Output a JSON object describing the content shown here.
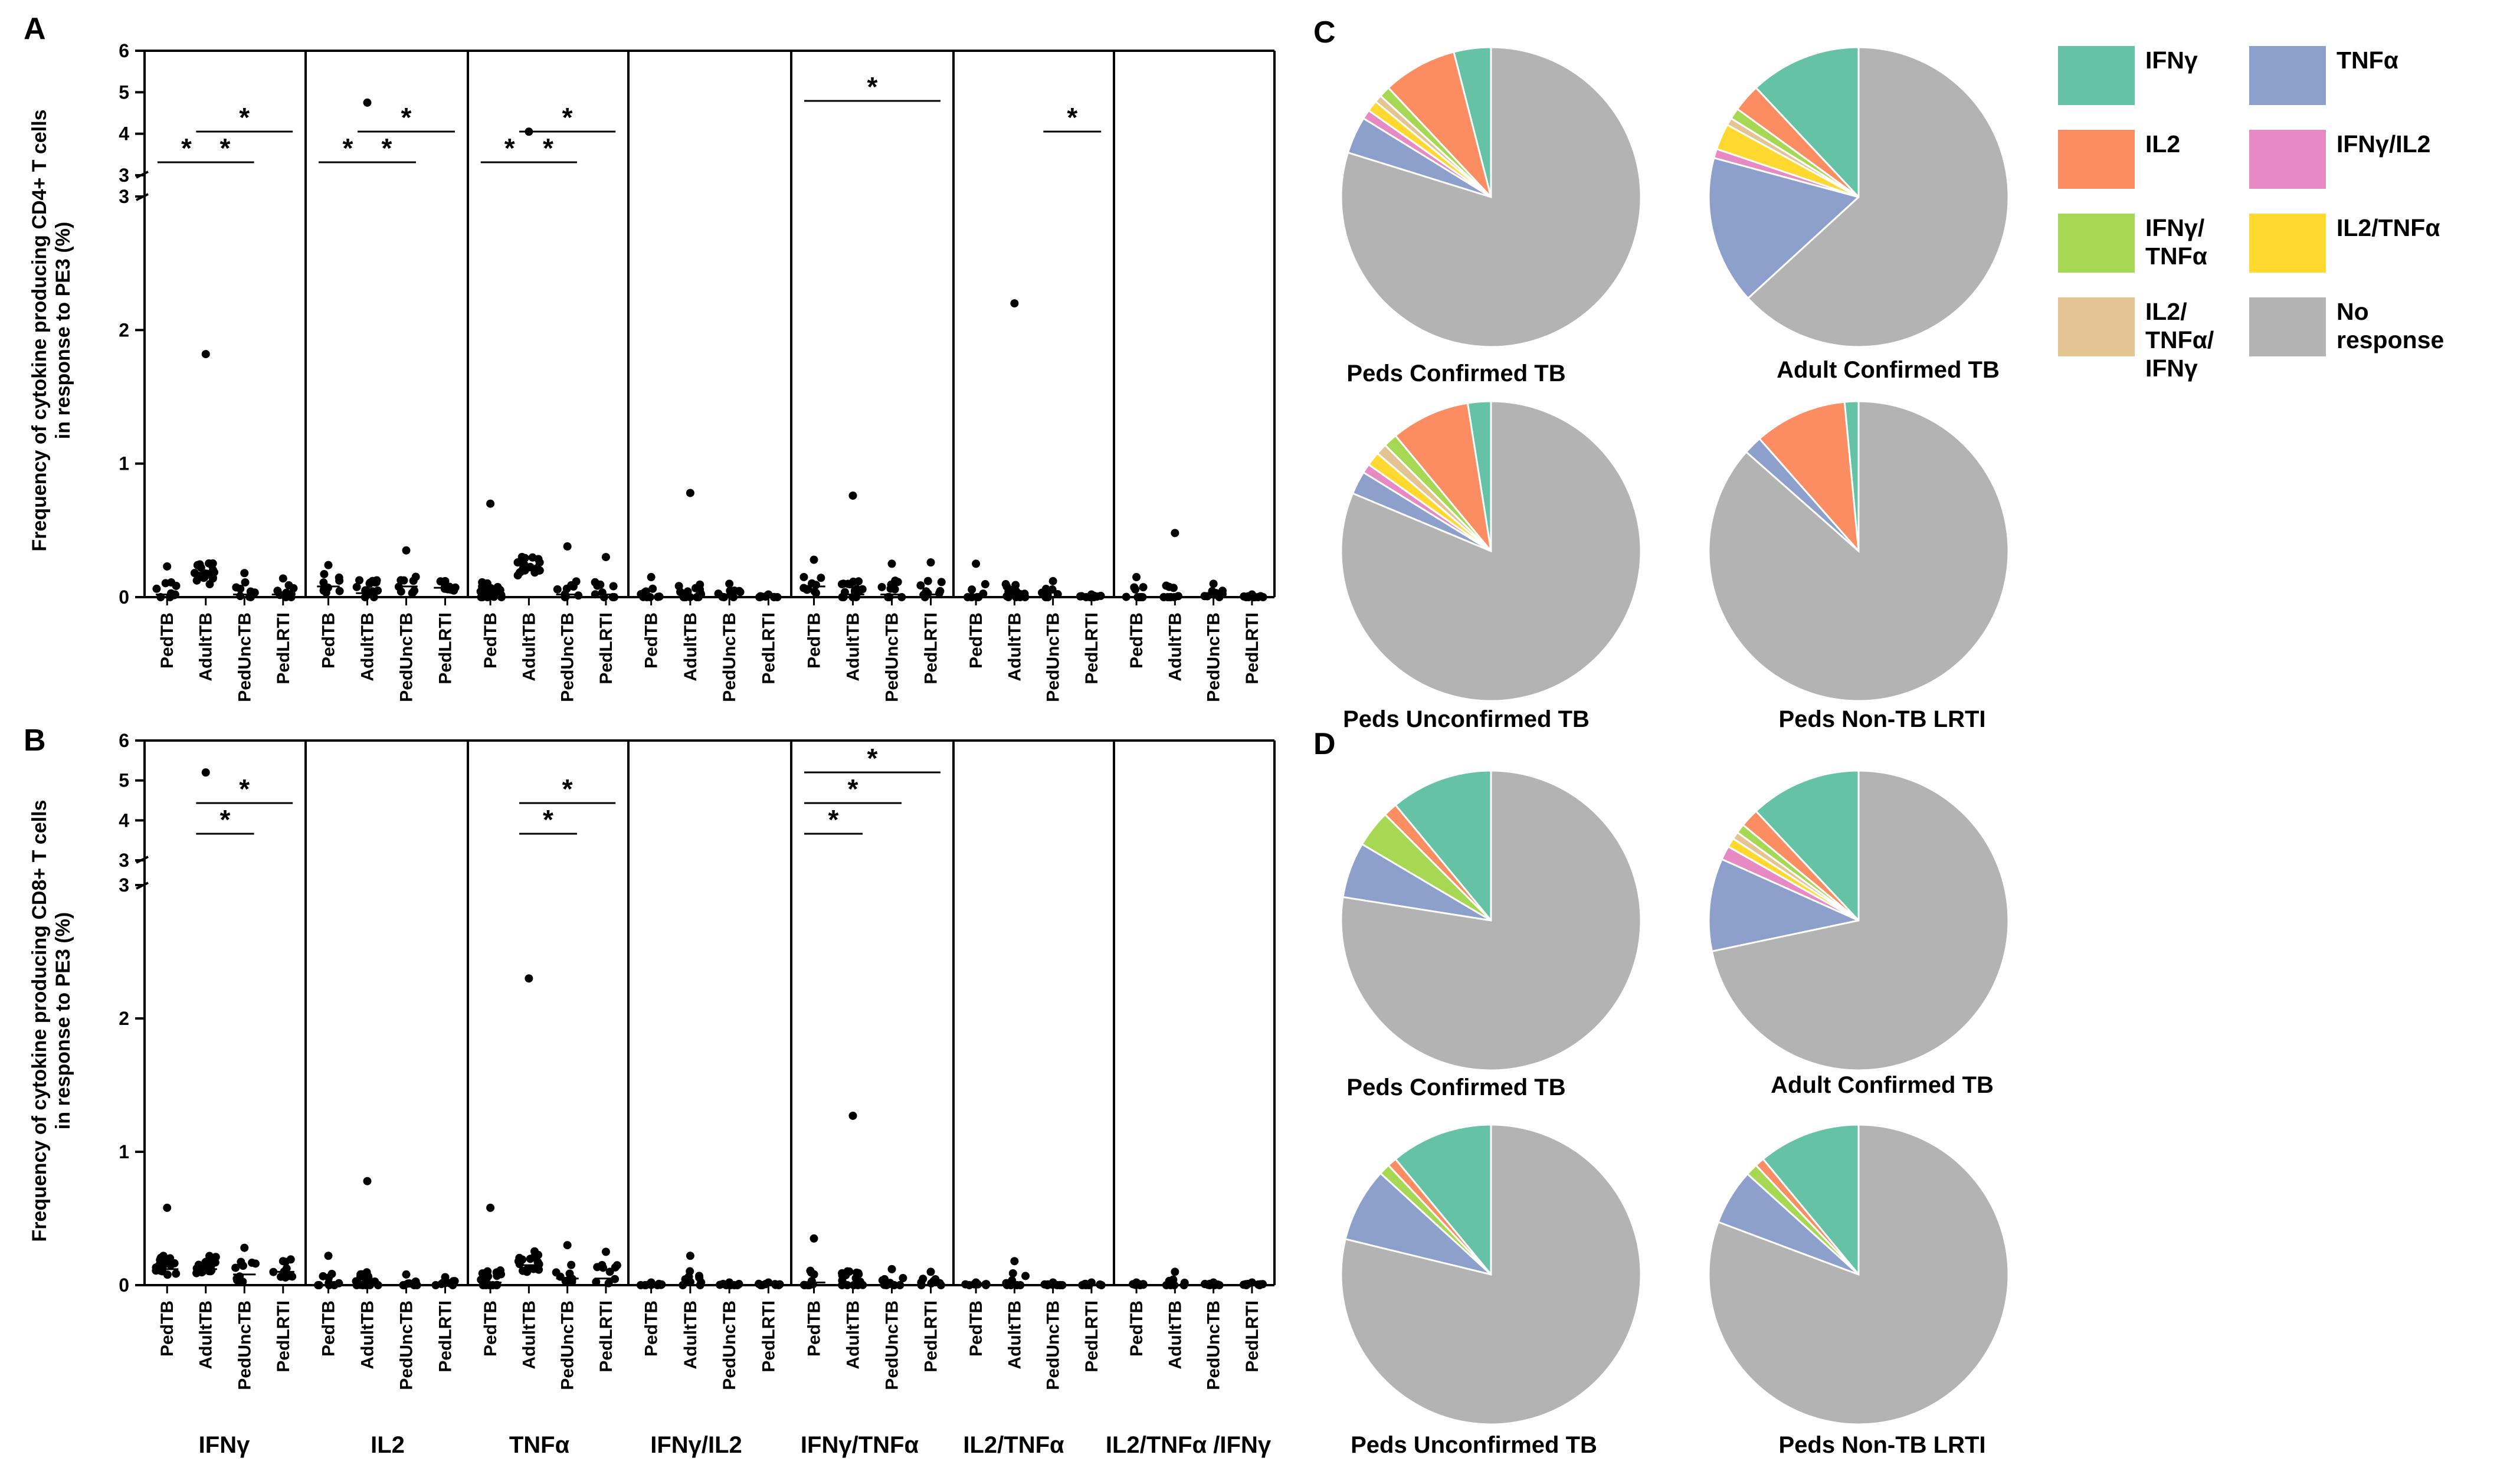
{
  "figure": {
    "panel_labels": [
      "A",
      "B",
      "C",
      "D"
    ],
    "y_axis_labels": {
      "A": [
        "Frequency of cytokine producing CD4+ T cells",
        "in response to PE3 (%)"
      ],
      "B": [
        "Frequency of cytokine producing CD8+ T cells",
        "in response to PE3 (%)"
      ]
    },
    "y_ticks_lower": [
      "0",
      "1",
      "2",
      "3"
    ],
    "y_ticks_upper": [
      "3",
      "4",
      "5",
      "6"
    ],
    "groups": [
      "PedTB",
      "AdultTB",
      "PedUncTB",
      "PedLRTI"
    ],
    "cytokines": [
      "IFNγ",
      "IL2",
      "TNFα",
      "IFNγ/IL2",
      "IFNγ/TNFα",
      "IL2/TNFα",
      "IL2/TNFα /IFNγ"
    ],
    "significance_marker": "*"
  },
  "chart_data": [
    {
      "type": "scatter",
      "id": "A",
      "title": "",
      "xlabel": "",
      "ylabel": "Frequency of cytokine producing CD4+ T cells in response to PE3 (%)",
      "ylim": [
        0,
        6
      ],
      "axis_break": [
        3,
        3
      ],
      "panels": [
        {
          "cytokine": "IFNγ",
          "max": [
            0.23,
            1.82,
            0.18,
            0.14
          ],
          "median": [
            0.02,
            0.15,
            0.02,
            0.02
          ],
          "brackets": [
            {
              "from": 0,
              "to": 1,
              "level": 0
            },
            {
              "from": 1,
              "to": 2,
              "level": 0
            },
            {
              "from": 1,
              "to": 3,
              "level": 1
            }
          ]
        },
        {
          "cytokine": "IL2",
          "max": [
            0.24,
            4.75,
            0.35,
            0.12
          ],
          "median": [
            0.08,
            0.03,
            0.08,
            0.07
          ],
          "brackets": [
            {
              "from": 0,
              "to": 1,
              "level": 0
            },
            {
              "from": 1,
              "to": 2,
              "level": 0
            },
            {
              "from": 1,
              "to": 3,
              "level": 1
            }
          ]
        },
        {
          "cytokine": "TNFα",
          "max": [
            0.7,
            4.05,
            0.38,
            0.3
          ],
          "median": [
            0.02,
            0.2,
            0.02,
            0.02
          ],
          "brackets": [
            {
              "from": 0,
              "to": 1,
              "level": 0
            },
            {
              "from": 1,
              "to": 2,
              "level": 0
            },
            {
              "from": 1,
              "to": 3,
              "level": 1
            }
          ]
        },
        {
          "cytokine": "IFNγ/IL2",
          "max": [
            0.15,
            0.78,
            0.1,
            0.02
          ],
          "median": [
            0.0,
            0.0,
            0.0,
            0.0
          ],
          "brackets": []
        },
        {
          "cytokine": "IFNγ/TNFα",
          "max": [
            0.28,
            0.76,
            0.25,
            0.26
          ],
          "median": [
            0.08,
            0.02,
            0.02,
            0.02
          ],
          "brackets": [
            {
              "from": 0,
              "to": 3,
              "level": 2
            }
          ]
        },
        {
          "cytokine": "IL2/TNFα",
          "max": [
            0.25,
            2.2,
            0.12,
            0.02
          ],
          "median": [
            0.0,
            0.0,
            0.0,
            0.0
          ],
          "brackets": [
            {
              "from": 2,
              "to": 3,
              "level": 1
            }
          ]
        },
        {
          "cytokine": "IL2/TNFα /IFNγ",
          "max": [
            0.15,
            0.48,
            0.1,
            0.02
          ],
          "median": [
            0.0,
            0.0,
            0.0,
            0.0
          ],
          "brackets": []
        }
      ]
    },
    {
      "type": "scatter",
      "id": "B",
      "title": "",
      "xlabel": "",
      "ylabel": "Frequency of cytokine producing CD8+ T cells in response to PE3 (%)",
      "ylim": [
        0,
        6
      ],
      "axis_break": [
        3,
        3
      ],
      "panels": [
        {
          "cytokine": "IFNγ",
          "max": [
            0.58,
            5.2,
            0.28,
            0.18
          ],
          "median": [
            0.12,
            0.12,
            0.08,
            0.1
          ],
          "brackets": [
            {
              "from": 1,
              "to": 2,
              "level": 0
            },
            {
              "from": 1,
              "to": 3,
              "level": 1
            }
          ]
        },
        {
          "cytokine": "IL2",
          "max": [
            0.22,
            0.78,
            0.08,
            0.06
          ],
          "median": [
            0.0,
            0.0,
            0.0,
            0.0
          ],
          "brackets": []
        },
        {
          "cytokine": "TNFα",
          "max": [
            0.58,
            2.3,
            0.3,
            0.25
          ],
          "median": [
            0.02,
            0.15,
            0.05,
            0.05
          ],
          "brackets": [
            {
              "from": 1,
              "to": 2,
              "level": 0
            },
            {
              "from": 1,
              "to": 3,
              "level": 1
            }
          ]
        },
        {
          "cytokine": "IFNγ/IL2",
          "max": [
            0.02,
            0.22,
            0.02,
            0.02
          ],
          "median": [
            0.0,
            0.0,
            0.0,
            0.0
          ],
          "brackets": []
        },
        {
          "cytokine": "IFNγ/TNFα",
          "max": [
            0.35,
            1.27,
            0.12,
            0.1
          ],
          "median": [
            0.02,
            0.0,
            0.0,
            0.0
          ],
          "brackets": [
            {
              "from": 0,
              "to": 1,
              "level": 0
            },
            {
              "from": 0,
              "to": 2,
              "level": 1
            },
            {
              "from": 0,
              "to": 3,
              "level": 2
            }
          ]
        },
        {
          "cytokine": "IL2/TNFα",
          "max": [
            0.02,
            0.18,
            0.02,
            0.02
          ],
          "median": [
            0.0,
            0.0,
            0.0,
            0.0
          ],
          "brackets": []
        },
        {
          "cytokine": "IL2/TNFα /IFNγ",
          "max": [
            0.02,
            0.1,
            0.02,
            0.02
          ],
          "median": [
            0.0,
            0.0,
            0.0,
            0.0
          ],
          "brackets": []
        }
      ]
    },
    {
      "type": "pie",
      "id": "C",
      "categories": [
        "IFNγ",
        "IL2",
        "IFNγ/TNFα",
        "IL2/TNFα/IFNγ",
        "IL2/TNFα",
        "IFNγ/IL2",
        "TNFα",
        "No response"
      ],
      "pies": [
        {
          "title": "Peds Confirmed TB",
          "values": [
            4,
            8,
            1.2,
            0.8,
            1.2,
            1,
            4,
            79.8
          ]
        },
        {
          "title": "Adult Confirmed TB",
          "values": [
            12,
            3,
            1.2,
            0.8,
            2.8,
            1,
            16,
            63.2
          ]
        },
        {
          "title": "Peds Unconfirmed TB",
          "values": [
            2.5,
            8.5,
            1.5,
            1.2,
            1.5,
            1,
            2.5,
            81.3
          ]
        },
        {
          "title": "Peds Non-TB LRTI",
          "values": [
            1.5,
            10,
            0,
            0,
            0,
            0,
            2,
            86.5
          ]
        }
      ]
    },
    {
      "type": "pie",
      "id": "D",
      "categories": [
        "IFNγ",
        "IL2",
        "IFNγ/TNFα",
        "IL2/TNFα/IFNγ",
        "IL2/TNFα",
        "IFNγ/IL2",
        "TNFα",
        "No response"
      ],
      "pies": [
        {
          "title": "Peds Confirmed TB",
          "values": [
            11,
            1.5,
            4,
            0,
            0,
            0,
            6,
            77.5
          ]
        },
        {
          "title": "Adult Confirmed TB",
          "values": [
            12,
            2,
            1,
            0.8,
            1,
            1.5,
            10,
            71.7
          ]
        },
        {
          "title": "Peds Unconfirmed TB",
          "values": [
            11,
            1,
            1.2,
            0,
            0,
            0,
            8,
            78.8
          ]
        },
        {
          "title": "Peds Non-TB LRTI",
          "values": [
            11,
            1,
            1.3,
            0,
            0,
            0,
            6,
            80.7
          ]
        }
      ]
    }
  ],
  "legend": {
    "items": [
      {
        "label": "IFNγ",
        "color": "#66C2A5"
      },
      {
        "label": "TNFα",
        "color": "#8DA0CB"
      },
      {
        "label": "IL2",
        "color": "#FC8D62"
      },
      {
        "label": "IFNγ/IL2",
        "color": "#E78AC3"
      },
      {
        "label": "IFNγ/ TNFα",
        "color": "#A6D854"
      },
      {
        "label": "IL2/TNFα",
        "color": "#FFD92F"
      },
      {
        "label": "IL2/ TNFα/ IFNγ",
        "color": "#E5C494"
      },
      {
        "label": "No response",
        "color": "#B3B3B3"
      }
    ]
  },
  "colors": {
    "IFNγ": "#66C2A5",
    "IL2": "#FC8D62",
    "IFNγ/TNFα": "#A6D854",
    "IL2/TNFα/IFNγ": "#E5C494",
    "IL2/TNFα": "#FFD92F",
    "IFNγ/IL2": "#E78AC3",
    "TNFα": "#8DA0CB",
    "No response": "#B3B3B3"
  }
}
